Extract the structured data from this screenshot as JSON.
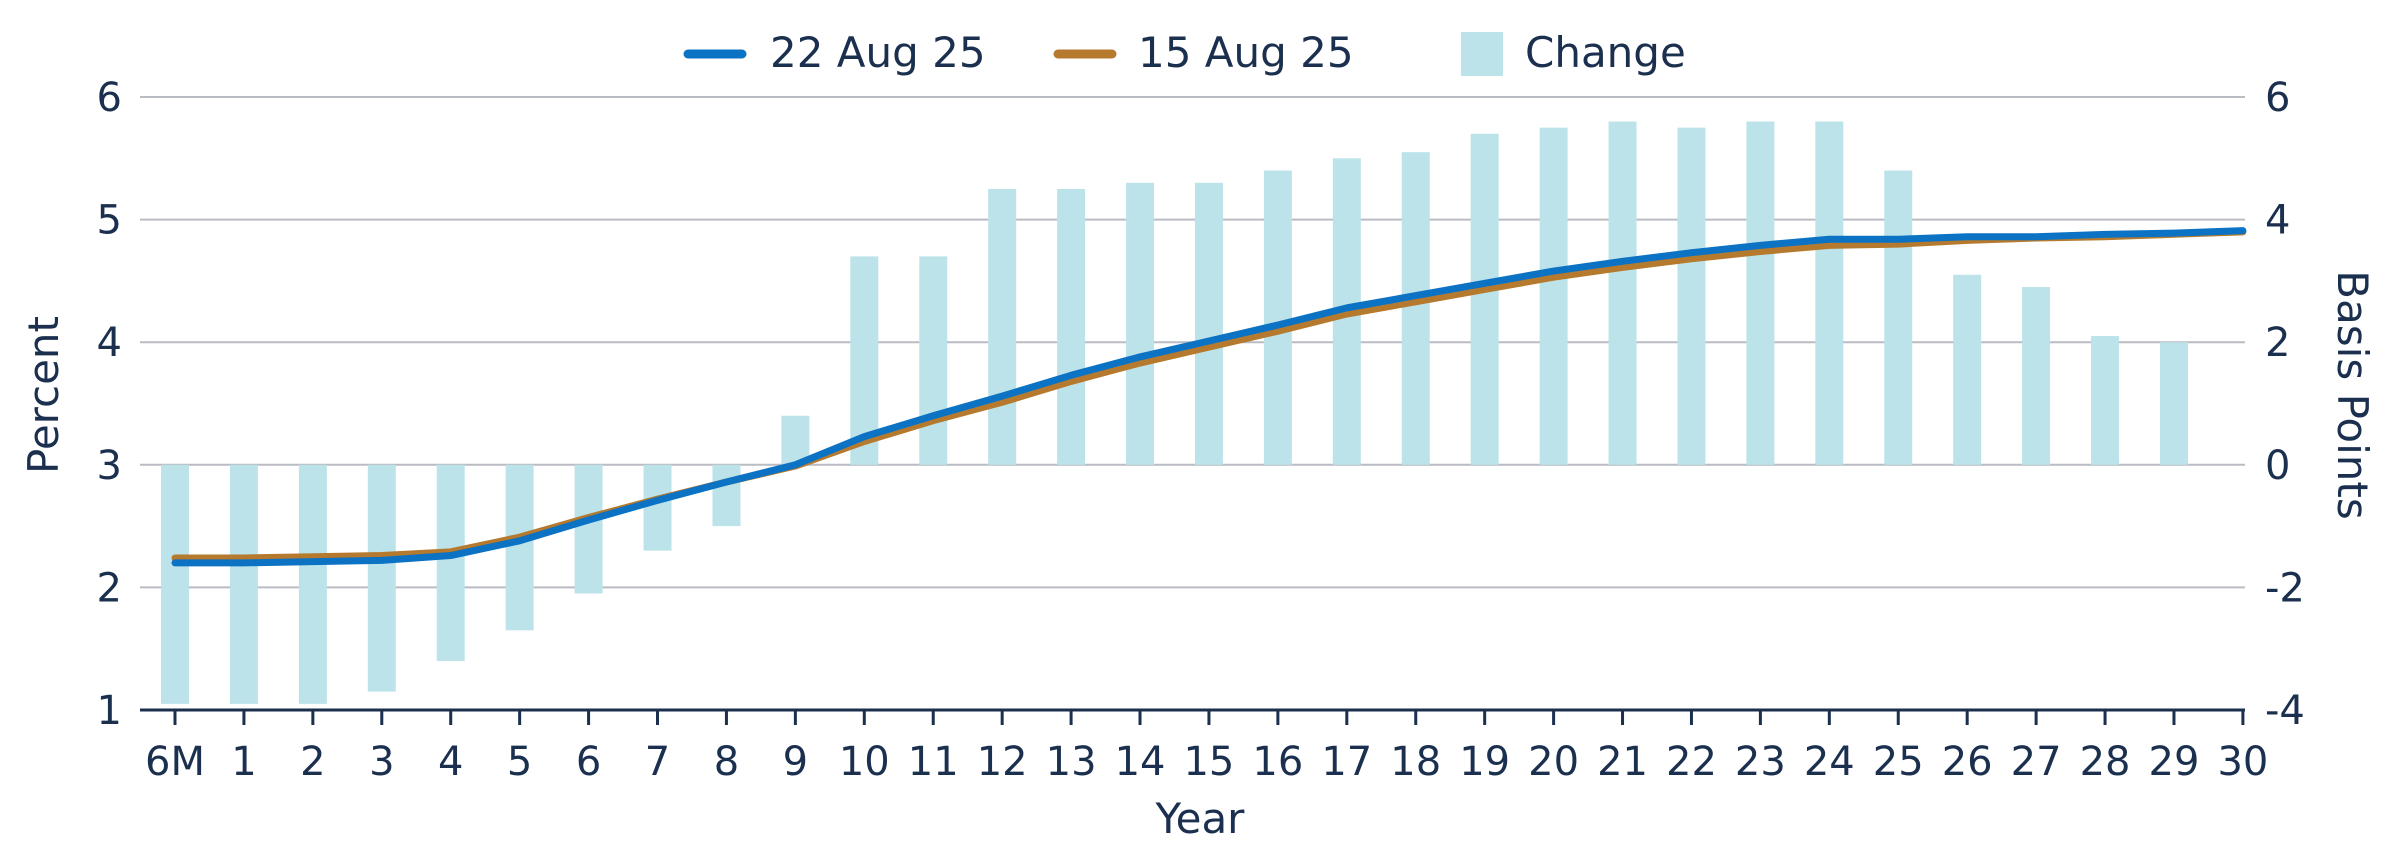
{
  "chart_data": {
    "type": "bar+line",
    "categories": [
      "6M",
      "1",
      "2",
      "3",
      "4",
      "5",
      "6",
      "7",
      "8",
      "9",
      "10",
      "11",
      "12",
      "13",
      "14",
      "15",
      "16",
      "17",
      "18",
      "19",
      "20",
      "21",
      "22",
      "23",
      "24",
      "25",
      "26",
      "27",
      "28",
      "29",
      "30"
    ],
    "xlabel": "Year",
    "ylabel_left": "Percent",
    "ylabel_right": "Basis Points",
    "ylim_left": [
      1,
      6
    ],
    "yticks_left": [
      1,
      2,
      3,
      4,
      5,
      6
    ],
    "ylim_right": [
      -4,
      6
    ],
    "yticks_right": [
      -4,
      -2,
      0,
      2,
      4,
      6
    ],
    "grid": true,
    "legend_position": "top-center",
    "colors": {
      "series_22aug": "#0b72c4",
      "series_15aug": "#b57a2e",
      "change": "#bce3ea",
      "text": "#1b2f4e",
      "axis": "#1b2f4e",
      "grid": "#b9bcc2"
    },
    "series": [
      {
        "name": "22 Aug 25",
        "kind": "line",
        "axis": "left",
        "values": [
          2.2,
          2.2,
          2.21,
          2.22,
          2.26,
          2.38,
          2.55,
          2.71,
          2.86,
          3.0,
          3.23,
          3.4,
          3.56,
          3.73,
          3.88,
          4.01,
          4.14,
          4.28,
          4.38,
          4.48,
          4.58,
          4.66,
          4.73,
          4.79,
          4.84,
          4.84,
          4.86,
          4.86,
          4.88,
          4.89,
          4.91
        ]
      },
      {
        "name": "15 Aug 25",
        "kind": "line",
        "axis": "left",
        "values": [
          2.24,
          2.24,
          2.25,
          2.26,
          2.29,
          2.41,
          2.57,
          2.72,
          2.86,
          2.99,
          3.19,
          3.36,
          3.51,
          3.68,
          3.83,
          3.96,
          4.09,
          4.23,
          4.33,
          4.43,
          4.53,
          4.61,
          4.68,
          4.74,
          4.79,
          4.8,
          4.83,
          4.85,
          4.86,
          4.88,
          4.9
        ]
      },
      {
        "name": "Change",
        "kind": "bar",
        "axis": "right",
        "values": [
          -3.9,
          -3.9,
          -3.9,
          -3.7,
          -3.2,
          -2.7,
          -2.1,
          -1.4,
          -1.0,
          0.8,
          3.4,
          3.4,
          4.5,
          4.5,
          4.6,
          4.6,
          4.8,
          5.0,
          5.1,
          5.4,
          5.5,
          5.6,
          5.5,
          5.6,
          5.6,
          4.8,
          3.1,
          2.9,
          2.1,
          2.0,
          0
        ]
      }
    ]
  }
}
